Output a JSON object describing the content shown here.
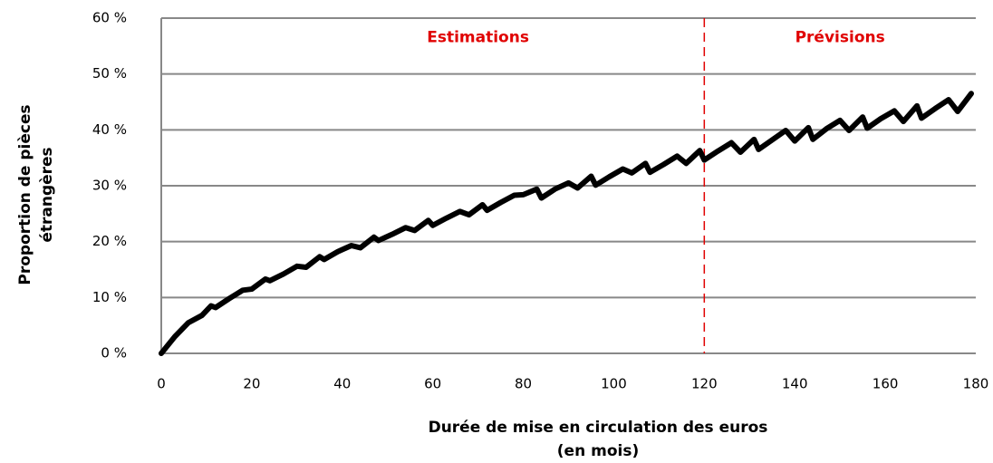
{
  "chart_data": {
    "type": "line",
    "x_label": [
      "Durée de mise en circulation des euros",
      "(en mois)"
    ],
    "y_label": [
      "Proportion de pièces",
      "étrangères"
    ],
    "annotations": [
      {
        "text": "Estimations",
        "x": 70,
        "y": 56.5
      },
      {
        "text": "Prévisions",
        "x": 150,
        "y": 56.5
      }
    ],
    "vline": {
      "x": 120,
      "color": "#e00000"
    },
    "xlim": [
      0,
      180
    ],
    "xticks": [
      0,
      20,
      40,
      60,
      80,
      100,
      120,
      140,
      160,
      180
    ],
    "ylim": [
      0,
      60
    ],
    "yticks": [
      {
        "value": 0,
        "label": "0 %"
      },
      {
        "value": 10,
        "label": "10 %"
      },
      {
        "value": 20,
        "label": "20 %"
      },
      {
        "value": 30,
        "label": "30 %"
      },
      {
        "value": 40,
        "label": "40 %"
      },
      {
        "value": 50,
        "label": "50 %"
      },
      {
        "value": 60,
        "label": "60 %"
      }
    ],
    "grid": true,
    "series": [
      {
        "color": "#000000",
        "x": [
          0,
          3,
          6,
          9,
          11,
          12,
          15,
          18,
          20,
          23,
          24,
          27,
          30,
          32,
          35,
          36,
          39,
          42,
          44,
          47,
          48,
          51,
          54,
          56,
          59,
          60,
          63,
          66,
          68,
          71,
          72,
          75,
          78,
          80,
          83,
          84,
          87,
          90,
          92,
          95,
          96,
          99,
          102,
          104,
          107,
          108,
          111,
          114,
          116,
          119,
          120,
          123,
          126,
          128,
          131,
          132,
          135,
          138,
          140,
          143,
          144,
          147,
          150,
          152,
          155,
          156,
          159,
          162,
          164,
          167,
          168,
          171,
          174,
          176,
          179
        ],
        "values": [
          0,
          3,
          5.5,
          6.8,
          8.5,
          8.2,
          9.8,
          11.3,
          11.5,
          13.3,
          13,
          14.2,
          15.6,
          15.4,
          17.3,
          16.8,
          18.2,
          19.3,
          18.9,
          20.8,
          20.2,
          21.3,
          22.5,
          22,
          23.8,
          22.9,
          24.2,
          25.4,
          24.8,
          26.6,
          25.6,
          27,
          28.3,
          28.4,
          29.4,
          27.8,
          29.4,
          30.5,
          29.6,
          31.7,
          30.1,
          31.6,
          33,
          32.3,
          34,
          32.4,
          33.8,
          35.3,
          34,
          36.3,
          34.6,
          36.2,
          37.7,
          36,
          38.3,
          36.5,
          38.2,
          39.9,
          38,
          40.4,
          38.3,
          40.2,
          41.7,
          39.9,
          42.3,
          40.3,
          42,
          43.4,
          41.5,
          44.3,
          42.1,
          43.8,
          45.4,
          43.3,
          46.5
        ]
      }
    ]
  }
}
